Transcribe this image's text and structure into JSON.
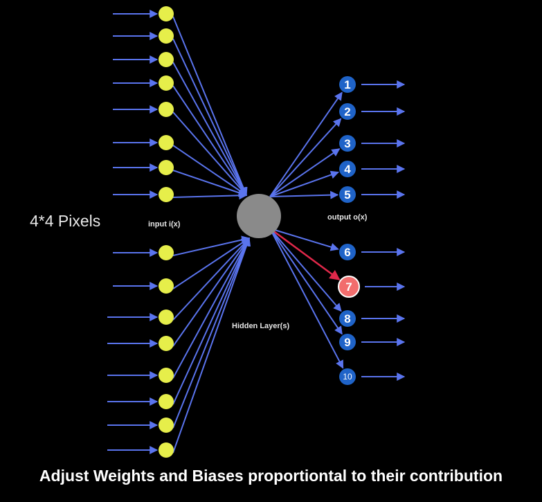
{
  "labels": {
    "pixels": "4*4 Pixels",
    "input": "input i(x)",
    "output": "output o(x)",
    "hidden": "Hidden Layer(s)"
  },
  "caption": "Adjust Weights and Biases proportiontal to their contribution",
  "input_nodes": 16,
  "output_nodes": [
    "1",
    "2",
    "3",
    "4",
    "5",
    "6",
    "7",
    "8",
    "9",
    "10"
  ],
  "highlighted_output": "7",
  "colors": {
    "background": "#000000",
    "arrow": "#5a74ee",
    "input_node": "#e6ee4a",
    "hidden_node": "#8a8a8a",
    "output_node": "#1f63c8",
    "highlight_node": "#f26d6d",
    "highlight_edge": "#e0284a",
    "text": "#ffffff"
  }
}
